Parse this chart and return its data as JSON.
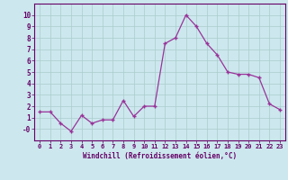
{
  "x": [
    0,
    1,
    2,
    3,
    4,
    5,
    6,
    7,
    8,
    9,
    10,
    11,
    12,
    13,
    14,
    15,
    16,
    17,
    18,
    19,
    20,
    21,
    22,
    23
  ],
  "y": [
    1.5,
    1.5,
    0.5,
    -0.2,
    1.2,
    0.5,
    0.8,
    0.8,
    2.5,
    1.1,
    2.0,
    2.0,
    7.5,
    8.0,
    10.0,
    9.0,
    7.5,
    6.5,
    5.0,
    4.8,
    4.8,
    4.5,
    2.2,
    1.7
  ],
  "line_color": "#993399",
  "marker_color": "#993399",
  "bg_color": "#cce8ee",
  "grid_color": "#aacccc",
  "xlabel": "Windchill (Refroidissement éolien,°C)",
  "xlim": [
    -0.5,
    23.5
  ],
  "ylim": [
    -1,
    11
  ],
  "xtick_labels": [
    "0",
    "1",
    "2",
    "3",
    "4",
    "5",
    "6",
    "7",
    "8",
    "9",
    "10",
    "11",
    "12",
    "13",
    "14",
    "15",
    "16",
    "17",
    "18",
    "19",
    "20",
    "21",
    "22",
    "23"
  ],
  "ytick_vals": [
    0,
    1,
    2,
    3,
    4,
    5,
    6,
    7,
    8,
    9,
    10
  ],
  "ytick_labels": [
    "-0",
    "1",
    "2",
    "3",
    "4",
    "5",
    "6",
    "7",
    "8",
    "9",
    "10"
  ],
  "tick_color": "#660066",
  "label_color": "#660066",
  "axis_color": "#660066"
}
